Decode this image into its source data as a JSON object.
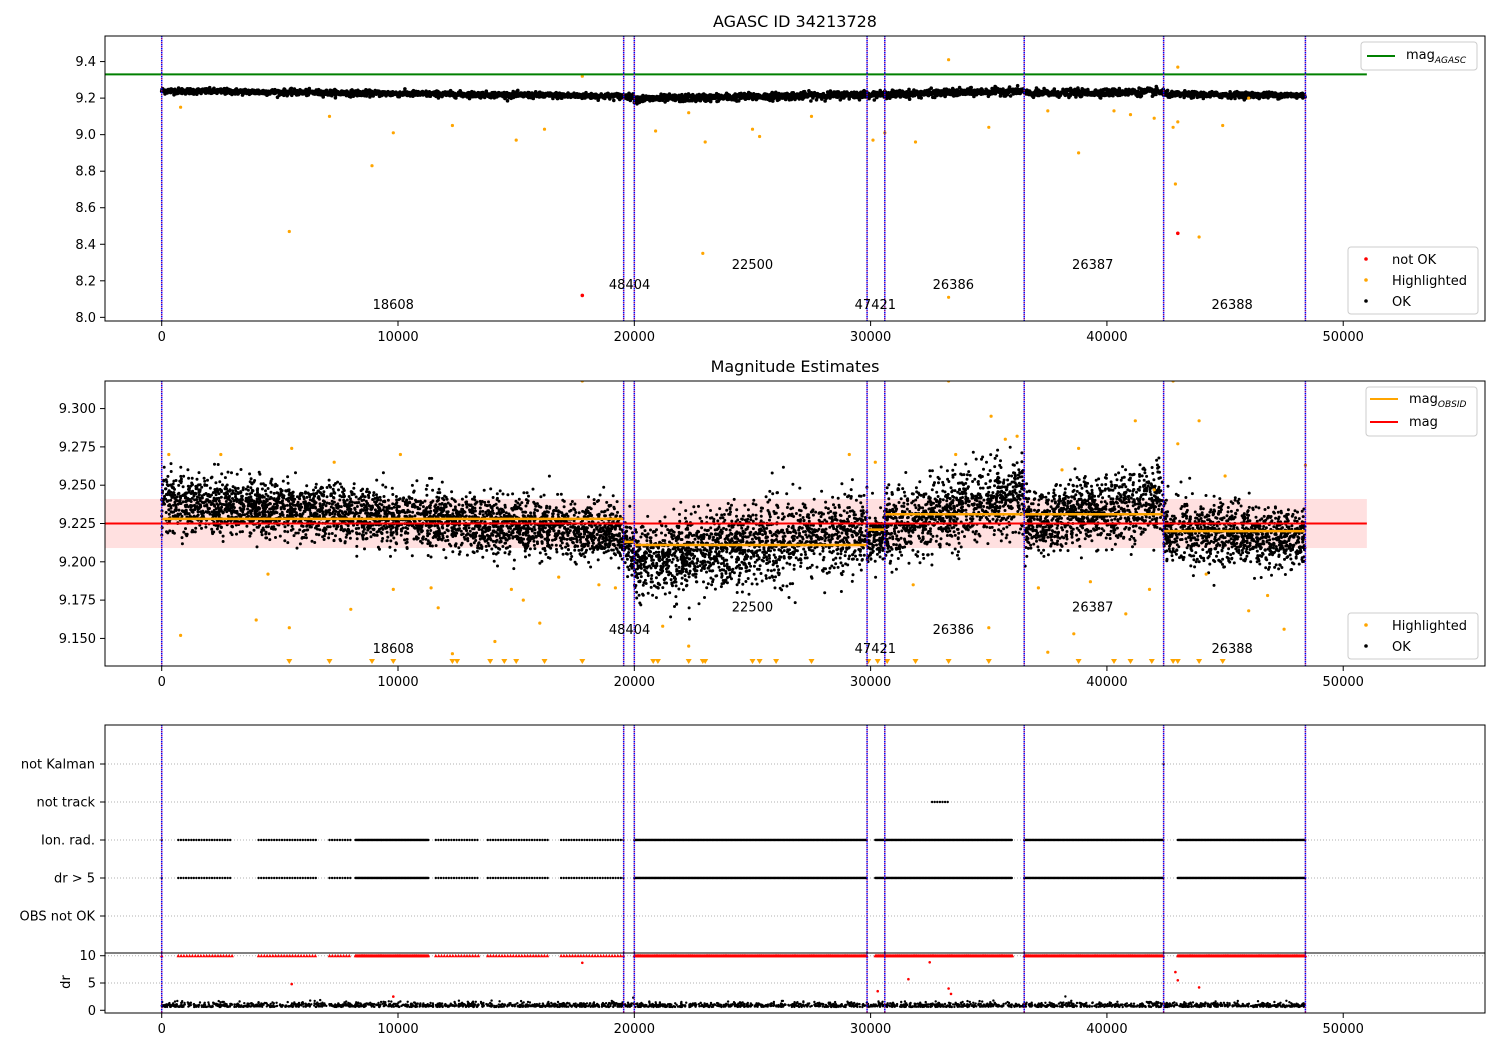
{
  "chart_data": [
    {
      "type": "scatter",
      "title": "AGASC ID 34213728",
      "xlabel": "",
      "ylabel": "",
      "xlim": [
        -2400,
        56000
      ],
      "ylim": [
        7.98,
        9.54
      ],
      "x_ticks": [
        0,
        10000,
        20000,
        30000,
        40000,
        50000
      ],
      "y_ticks": [
        8.0,
        8.2,
        8.4,
        8.6,
        8.8,
        9.0,
        9.2,
        9.4
      ],
      "y_tick_labels": [
        "8.0",
        "8.2",
        "8.4",
        "8.6",
        "8.8",
        "9.0",
        "9.2",
        "9.4"
      ],
      "reference_lines": [
        {
          "name": "mag_AGASC",
          "y": 9.33,
          "x_range": [
            -2400,
            51000
          ],
          "color": "#008000"
        }
      ],
      "obsid_boundaries": [
        0,
        19550,
        20000,
        29850,
        30600,
        36500,
        42400,
        48400
      ],
      "obsid_labels": [
        {
          "text": "18608",
          "x": 9800,
          "y": 8.045
        },
        {
          "text": "48404",
          "x": 19800,
          "y": 8.155
        },
        {
          "text": "22500",
          "x": 25000,
          "y": 8.265
        },
        {
          "text": "47421",
          "x": 30200,
          "y": 8.045
        },
        {
          "text": "26386",
          "x": 33500,
          "y": 8.155
        },
        {
          "text": "26387",
          "x": 39400,
          "y": 8.265
        },
        {
          "text": "26388",
          "x": 45300,
          "y": 8.045
        }
      ],
      "segments": [
        {
          "x": [
            0,
            19550
          ],
          "level_start": 9.24,
          "level_end": 9.21,
          "noise": 0.008
        },
        {
          "x": [
            19550,
            20000
          ],
          "level_start": 9.21,
          "level_end": 9.205,
          "noise": 0.008
        },
        {
          "x": [
            20000,
            29850
          ],
          "level_start": 9.195,
          "level_end": 9.22,
          "noise": 0.01
        },
        {
          "x": [
            29850,
            30600
          ],
          "level_start": 9.22,
          "level_end": 9.22,
          "noise": 0.008
        },
        {
          "x": [
            30600,
            36500
          ],
          "level_start": 9.22,
          "level_end": 9.24,
          "noise": 0.01
        },
        {
          "x": [
            36500,
            42400
          ],
          "level_start": 9.225,
          "level_end": 9.235,
          "noise": 0.01
        },
        {
          "x": [
            42400,
            48400
          ],
          "level_start": 9.22,
          "level_end": 9.215,
          "noise": 0.008
        }
      ],
      "points_not_ok": [
        [
          17800,
          8.12
        ],
        [
          43000,
          8.46
        ]
      ],
      "points_highlighted": [
        [
          800,
          9.15
        ],
        [
          5400,
          8.47
        ],
        [
          7100,
          9.1
        ],
        [
          8900,
          8.83
        ],
        [
          9800,
          9.01
        ],
        [
          12300,
          9.05
        ],
        [
          15000,
          8.97
        ],
        [
          16200,
          9.03
        ],
        [
          17800,
          9.32
        ],
        [
          20900,
          9.02
        ],
        [
          22300,
          9.12
        ],
        [
          22900,
          8.35
        ],
        [
          23000,
          8.96
        ],
        [
          25000,
          9.03
        ],
        [
          25300,
          8.99
        ],
        [
          27500,
          9.1
        ],
        [
          30100,
          8.97
        ],
        [
          30600,
          9.01
        ],
        [
          31900,
          8.96
        ],
        [
          33300,
          9.41
        ],
        [
          33300,
          8.11
        ],
        [
          35000,
          9.04
        ],
        [
          37500,
          9.13
        ],
        [
          38800,
          8.9
        ],
        [
          40300,
          9.13
        ],
        [
          41000,
          9.11
        ],
        [
          42000,
          9.09
        ],
        [
          42800,
          9.04
        ],
        [
          42900,
          8.73
        ],
        [
          43000,
          9.37
        ],
        [
          43000,
          9.07
        ],
        [
          43900,
          8.44
        ],
        [
          44900,
          9.05
        ],
        [
          46000,
          9.2
        ]
      ],
      "legend": {
        "position": "top-right",
        "entries": [
          "mag_AGASC"
        ]
      },
      "legend2": {
        "position": "bottom-right",
        "entries": [
          "not OK",
          "Highlighted",
          "OK"
        ]
      },
      "grid": false
    },
    {
      "type": "scatter",
      "title": "Magnitude Estimates",
      "xlabel": "",
      "ylabel": "",
      "xlim": [
        -2400,
        56000
      ],
      "ylim": [
        9.132,
        9.318
      ],
      "x_ticks": [
        0,
        10000,
        20000,
        30000,
        40000,
        50000
      ],
      "y_ticks": [
        9.15,
        9.175,
        9.2,
        9.225,
        9.25,
        9.275,
        9.3
      ],
      "y_tick_labels": [
        "9.150",
        "9.175",
        "9.200",
        "9.225",
        "9.250",
        "9.275",
        "9.300"
      ],
      "mag": {
        "name": "mag",
        "y": 9.225,
        "band": [
          9.209,
          9.241
        ],
        "x_range": [
          -2400,
          51000
        ],
        "color": "#ff0000"
      },
      "mag_obsid": [
        {
          "x": [
            0,
            19550
          ],
          "y": 9.228
        },
        {
          "x": [
            19550,
            20000
          ],
          "y": 9.213
        },
        {
          "x": [
            20000,
            29850
          ],
          "y": 9.211
        },
        {
          "x": [
            29850,
            30600
          ],
          "y": 9.221
        },
        {
          "x": [
            30600,
            36500
          ],
          "y": 9.231
        },
        {
          "x": [
            36500,
            42400
          ],
          "y": 9.231
        },
        {
          "x": [
            42400,
            48400
          ],
          "y": 9.22
        }
      ],
      "obsid_boundaries": [
        0,
        19550,
        20000,
        29850,
        30600,
        36500,
        42400,
        48400
      ],
      "obsid_labels": [
        {
          "text": "18608",
          "x": 9800,
          "y": 9.1405
        },
        {
          "text": "48404",
          "x": 19800,
          "y": 9.153
        },
        {
          "text": "22500",
          "x": 25000,
          "y": 9.1675
        },
        {
          "text": "47421",
          "x": 30200,
          "y": 9.1405
        },
        {
          "text": "26386",
          "x": 33500,
          "y": 9.153
        },
        {
          "text": "26387",
          "x": 39400,
          "y": 9.1675
        },
        {
          "text": "26388",
          "x": 45300,
          "y": 9.1405
        }
      ],
      "segments": [
        {
          "x": [
            0,
            19550
          ],
          "center_start": 9.24,
          "center_end": 9.218,
          "spread": 0.02
        },
        {
          "x": [
            19550,
            20000
          ],
          "center_start": 9.212,
          "center_end": 9.205,
          "spread": 0.02
        },
        {
          "x": [
            20000,
            29850
          ],
          "center_start": 9.2,
          "center_end": 9.222,
          "spread": 0.028
        },
        {
          "x": [
            29850,
            30600
          ],
          "center_start": 9.215,
          "center_end": 9.215,
          "spread": 0.02
        },
        {
          "x": [
            30600,
            36500
          ],
          "center_start": 9.222,
          "center_end": 9.245,
          "spread": 0.026
        },
        {
          "x": [
            36500,
            42400
          ],
          "center_start": 9.225,
          "center_end": 9.24,
          "spread": 0.024
        },
        {
          "x": [
            42400,
            48400
          ],
          "center_start": 9.22,
          "center_end": 9.215,
          "spread": 0.022
        }
      ],
      "points_highlighted": [
        [
          300,
          9.27
        ],
        [
          800,
          9.152
        ],
        [
          2500,
          9.27
        ],
        [
          4000,
          9.162
        ],
        [
          4500,
          9.192
        ],
        [
          5400,
          9.157
        ],
        [
          5500,
          9.274
        ],
        [
          7300,
          9.265
        ],
        [
          8000,
          9.169
        ],
        [
          9800,
          9.182
        ],
        [
          10100,
          9.27
        ],
        [
          11400,
          9.183
        ],
        [
          11700,
          9.17
        ],
        [
          12300,
          9.14
        ],
        [
          14100,
          9.148
        ],
        [
          14800,
          9.182
        ],
        [
          15300,
          9.175
        ],
        [
          16000,
          9.16
        ],
        [
          16800,
          9.19
        ],
        [
          17800,
          9.318
        ],
        [
          18500,
          9.185
        ],
        [
          19200,
          9.183
        ],
        [
          21200,
          9.158
        ],
        [
          22300,
          9.145
        ],
        [
          29100,
          9.27
        ],
        [
          30200,
          9.265
        ],
        [
          31800,
          9.185
        ],
        [
          33300,
          9.318
        ],
        [
          33600,
          9.27
        ],
        [
          35100,
          9.295
        ],
        [
          35000,
          9.157
        ],
        [
          35700,
          9.28
        ],
        [
          36200,
          9.282
        ],
        [
          37100,
          9.183
        ],
        [
          37500,
          9.141
        ],
        [
          38100,
          9.26
        ],
        [
          38600,
          9.153
        ],
        [
          38800,
          9.274
        ],
        [
          39300,
          9.187
        ],
        [
          40800,
          9.166
        ],
        [
          41200,
          9.292
        ],
        [
          41800,
          9.182
        ],
        [
          42000,
          9.247
        ],
        [
          42800,
          9.318
        ],
        [
          43000,
          9.277
        ],
        [
          43900,
          9.292
        ],
        [
          44200,
          9.192
        ],
        [
          45000,
          9.256
        ],
        [
          46000,
          9.168
        ],
        [
          46800,
          9.178
        ],
        [
          47500,
          9.156
        ],
        [
          48400,
          9.263
        ]
      ],
      "points_clipped_low_x": [
        5400,
        7100,
        8900,
        9800,
        12300,
        12500,
        13900,
        14500,
        15000,
        16200,
        17800,
        20800,
        21000,
        22300,
        22900,
        23000,
        25000,
        25300,
        26000,
        27500,
        29900,
        30300,
        30700,
        31900,
        33300,
        35000,
        38800,
        40300,
        41000,
        41900,
        42800,
        43000,
        43900,
        44900
      ],
      "legend": {
        "position": "top-right",
        "entries": [
          "mag_OBSID",
          "mag"
        ]
      },
      "legend2": {
        "position": "bottom-right",
        "entries": [
          "Highlighted",
          "OK"
        ]
      },
      "grid": false
    },
    {
      "type": "scatter",
      "title": "",
      "xlabel": "",
      "ylabel": "",
      "xlim": [
        -2400,
        56000
      ],
      "categories": [
        "not Kalman",
        "not track",
        "Ion. rad.",
        "dr > 5",
        "OBS not OK"
      ],
      "category_flags": {
        "not Kalman": [
          [
            42400,
            42500
          ]
        ],
        "not track": [
          [
            32600,
            33300
          ]
        ],
        "Ion. rad.": [
          [
            0,
            100
          ],
          [
            700,
            3000
          ],
          [
            4100,
            6600
          ],
          [
            7100,
            8000
          ],
          [
            8200,
            11300
          ],
          [
            11600,
            13400
          ],
          [
            13800,
            16400
          ],
          [
            16900,
            19550
          ],
          [
            20000,
            29850
          ],
          [
            30200,
            36000
          ],
          [
            36500,
            42400
          ],
          [
            43000,
            48400
          ]
        ],
        "dr > 5": [
          [
            0,
            100
          ],
          [
            700,
            3000
          ],
          [
            4100,
            6600
          ],
          [
            7100,
            8000
          ],
          [
            8200,
            11300
          ],
          [
            11600,
            13400
          ],
          [
            13800,
            16400
          ],
          [
            16900,
            19550
          ],
          [
            20000,
            29850
          ],
          [
            30200,
            36000
          ],
          [
            36500,
            42400
          ],
          [
            43000,
            48400
          ]
        ],
        "OBS not OK": []
      },
      "obsid_boundaries": [
        0,
        19550,
        20000,
        29850,
        30600,
        36500,
        42400,
        48400
      ],
      "grid": true,
      "x_ticks": []
    },
    {
      "type": "scatter",
      "title": "",
      "xlabel": "",
      "ylabel": "dr",
      "xlim": [
        -2400,
        56000
      ],
      "ylim": [
        -0.5,
        10.5
      ],
      "x_ticks": [
        0,
        10000,
        20000,
        30000,
        40000,
        50000
      ],
      "y_ticks": [
        0,
        5,
        10
      ],
      "y_tick_labels": [
        "0",
        "5",
        "10"
      ],
      "baseline": {
        "y": 0.6,
        "spread": 0.5
      },
      "clipped_y": 10,
      "clipped_ranges": [
        [
          0,
          100
        ],
        [
          700,
          3000
        ],
        [
          4100,
          6600
        ],
        [
          7100,
          8000
        ],
        [
          8200,
          11300
        ],
        [
          11600,
          13400
        ],
        [
          13800,
          16400
        ],
        [
          16900,
          19550
        ],
        [
          20000,
          29850
        ],
        [
          30200,
          36000
        ],
        [
          36500,
          42400
        ],
        [
          43000,
          48400
        ]
      ],
      "outliers": [
        [
          5500,
          4.8
        ],
        [
          9800,
          2.5
        ],
        [
          17800,
          8.7
        ],
        [
          30300,
          3.5
        ],
        [
          31600,
          5.7
        ],
        [
          32500,
          8.8
        ],
        [
          33300,
          4.0
        ],
        [
          33400,
          3.0
        ],
        [
          42900,
          7.0
        ],
        [
          43000,
          5.5
        ],
        [
          43900,
          4.2
        ]
      ],
      "obsid_boundaries": [
        0,
        19550,
        20000,
        29850,
        30600,
        36500,
        42400,
        48400
      ],
      "grid": true
    }
  ],
  "legend_labels": {
    "mag_agasc_main": "mag",
    "mag_agasc_sub": "AGASC",
    "not_ok": "not OK",
    "highlighted": "Highlighted",
    "ok": "OK",
    "mag_obsid_main": "mag",
    "mag_obsid_sub": "OBSID",
    "mag": "mag"
  },
  "colors": {
    "ok": "#000000",
    "highlighted": "#ffa500",
    "not_ok": "#ff0000",
    "mag_agasc": "#008000",
    "mag_obsid": "#ffa500",
    "mag": "#ff0000",
    "band": "#ffe0e0",
    "boundary": "#800080",
    "boundary_alt": "#0000ff"
  }
}
